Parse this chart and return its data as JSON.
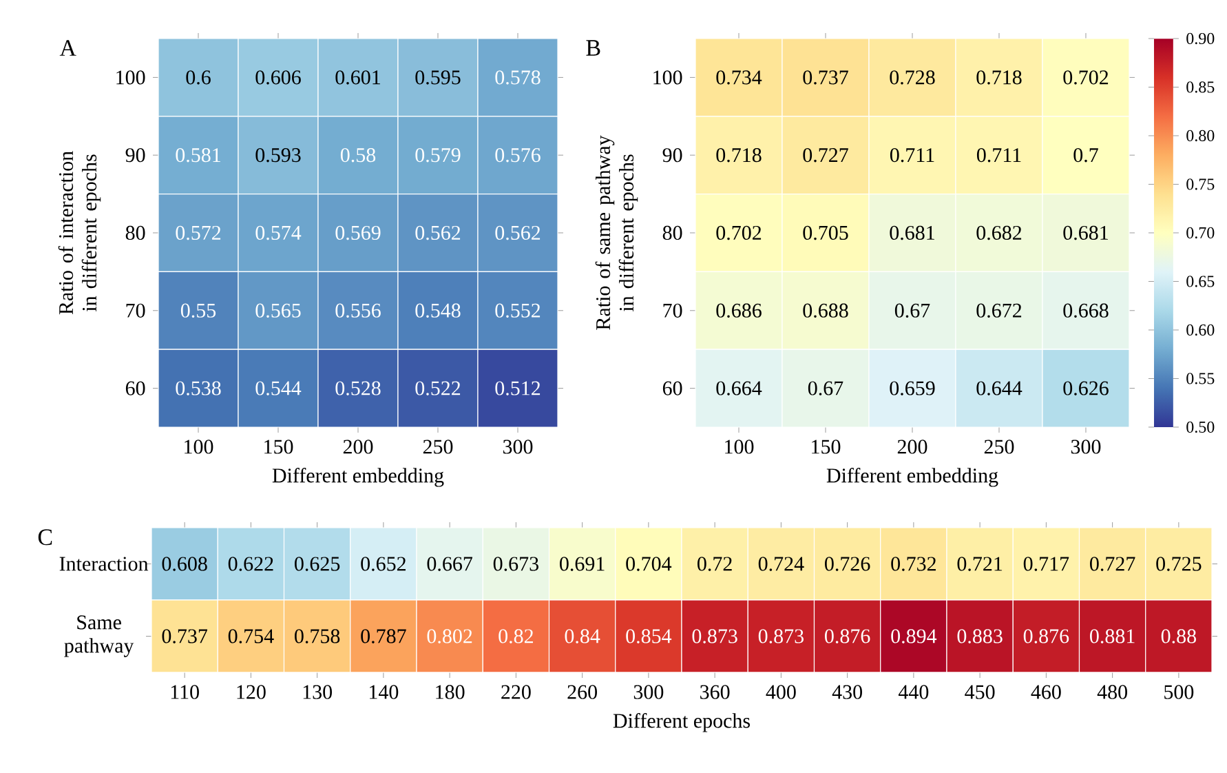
{
  "chart_data": [
    {
      "type": "heatmap",
      "title": "A",
      "xlabel": "Different embedding",
      "ylabel": "Ratio of interaction in different epochs",
      "categories": [
        "100",
        "150",
        "200",
        "250",
        "300"
      ],
      "y_categories": [
        "100",
        "90",
        "80",
        "70",
        "60"
      ],
      "cells": [
        [
          0.6,
          0.606,
          0.601,
          0.595,
          0.578
        ],
        [
          0.581,
          0.593,
          0.58,
          0.579,
          0.576
        ],
        [
          0.572,
          0.574,
          0.569,
          0.562,
          0.562
        ],
        [
          0.55,
          0.565,
          0.556,
          0.548,
          0.552
        ],
        [
          0.538,
          0.544,
          0.528,
          0.522,
          0.512
        ]
      ],
      "cell_labels": [
        [
          "0.6",
          "0.606",
          "0.601",
          "0.595",
          "0.578"
        ],
        [
          "0.581",
          "0.593",
          "0.58",
          "0.579",
          "0.576"
        ],
        [
          "0.572",
          "0.574",
          "0.569",
          "0.562",
          "0.562"
        ],
        [
          "0.55",
          "0.565",
          "0.556",
          "0.548",
          "0.552"
        ],
        [
          "0.538",
          "0.544",
          "0.528",
          "0.522",
          "0.512"
        ]
      ]
    },
    {
      "type": "heatmap",
      "title": "B",
      "xlabel": "Different embedding",
      "ylabel": "Ratio of same pathway in different epochs",
      "categories": [
        "100",
        "150",
        "200",
        "250",
        "300"
      ],
      "y_categories": [
        "100",
        "90",
        "80",
        "70",
        "60"
      ],
      "clim": [
        0.5,
        0.9
      ],
      "cticks": [
        {
          "value": 0.5,
          "label": "0.50"
        },
        {
          "value": 0.55,
          "label": "0.55"
        },
        {
          "value": 0.6,
          "label": "0.60"
        },
        {
          "value": 0.65,
          "label": "0.65"
        },
        {
          "value": 0.7,
          "label": "0.70"
        },
        {
          "value": 0.75,
          "label": "0.75"
        },
        {
          "value": 0.8,
          "label": "0.80"
        },
        {
          "value": 0.85,
          "label": "0.85"
        },
        {
          "value": 0.9,
          "label": "0.90"
        }
      ],
      "cells": [
        [
          0.734,
          0.737,
          0.728,
          0.718,
          0.702
        ],
        [
          0.718,
          0.727,
          0.711,
          0.711,
          0.7
        ],
        [
          0.702,
          0.705,
          0.681,
          0.682,
          0.681
        ],
        [
          0.686,
          0.688,
          0.67,
          0.672,
          0.668
        ],
        [
          0.664,
          0.67,
          0.659,
          0.644,
          0.626
        ]
      ],
      "cell_labels": [
        [
          "0.734",
          "0.737",
          "0.728",
          "0.718",
          "0.702"
        ],
        [
          "0.718",
          "0.727",
          "0.711",
          "0.711",
          "0.7"
        ],
        [
          "0.702",
          "0.705",
          "0.681",
          "0.682",
          "0.681"
        ],
        [
          "0.686",
          "0.688",
          "0.67",
          "0.672",
          "0.668"
        ],
        [
          "0.664",
          "0.67",
          "0.659",
          "0.644",
          "0.626"
        ]
      ]
    },
    {
      "type": "heatmap",
      "title": "C",
      "xlabel": "Different epochs",
      "categories": [
        "110",
        "120",
        "130",
        "140",
        "180",
        "220",
        "260",
        "300",
        "360",
        "400",
        "430",
        "440",
        "450",
        "460",
        "480",
        "500"
      ],
      "y_categories": [
        "Interaction",
        "Same pathway"
      ],
      "cells": [
        [
          0.608,
          0.622,
          0.625,
          0.652,
          0.667,
          0.673,
          0.691,
          0.704,
          0.72,
          0.724,
          0.726,
          0.732,
          0.721,
          0.717,
          0.727,
          0.725
        ],
        [
          0.737,
          0.754,
          0.758,
          0.787,
          0.802,
          0.82,
          0.84,
          0.854,
          0.873,
          0.873,
          0.876,
          0.894,
          0.883,
          0.876,
          0.881,
          0.88
        ]
      ],
      "cell_labels": [
        [
          "0.608",
          "0.622",
          "0.625",
          "0.652",
          "0.667",
          "0.673",
          "0.691",
          "0.704",
          "0.72",
          "0.724",
          "0.726",
          "0.732",
          "0.721",
          "0.717",
          "0.727",
          "0.725"
        ],
        [
          "0.737",
          "0.754",
          "0.758",
          "0.787",
          "0.802",
          "0.82",
          "0.84",
          "0.854",
          "0.873",
          "0.873",
          "0.876",
          "0.894",
          "0.883",
          "0.876",
          "0.881",
          "0.88"
        ]
      ]
    }
  ]
}
